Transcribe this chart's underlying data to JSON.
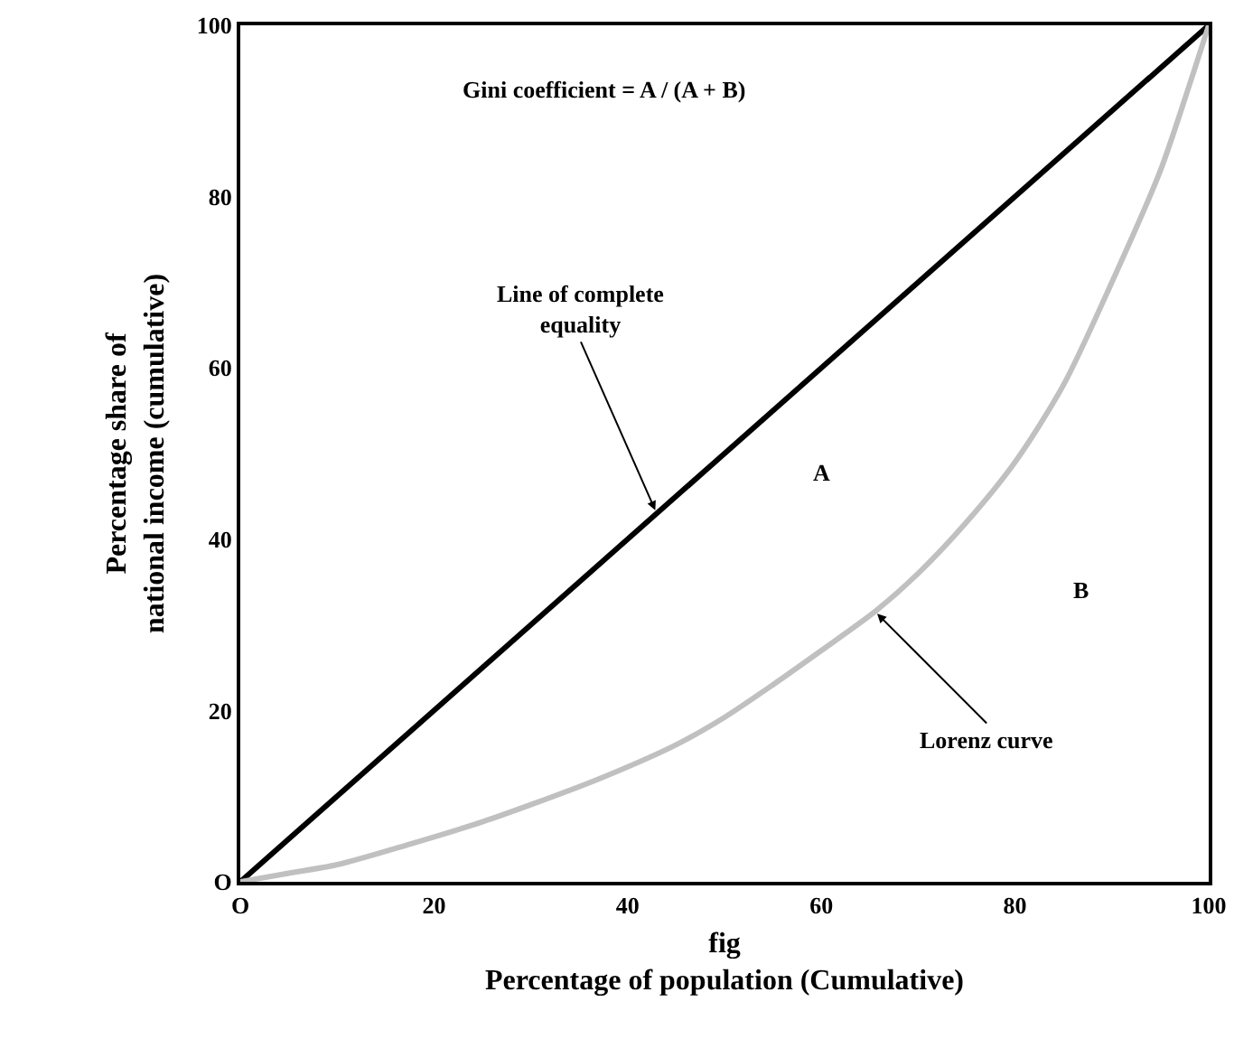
{
  "chart_data": {
    "type": "line",
    "xlabel": "fig\nPercentage of population (Cumulative)",
    "ylabel": "Percentage share of\nnational income (cumulative)",
    "xlim": [
      0,
      100
    ],
    "ylim": [
      0,
      100
    ],
    "xticks": [
      {
        "value": 0,
        "label": "O"
      },
      20,
      40,
      60,
      80,
      100
    ],
    "yticks": [
      {
        "value": 0,
        "label": "O"
      },
      20,
      40,
      60,
      80,
      100
    ],
    "marker": "none",
    "line_style": "solid",
    "series": [
      {
        "color": "#000000",
        "x": [
          0,
          100
        ],
        "values": [
          0,
          100
        ]
      },
      {
        "color": "#c0c0c0",
        "x": [
          0,
          5,
          10,
          17.5,
          25,
          30,
          37,
          45,
          50,
          55,
          60,
          65.6,
          70,
          75,
          80,
          85,
          90,
          95,
          98,
          100
        ],
        "values": [
          0,
          1,
          2,
          4.4,
          7,
          9,
          12,
          16,
          19.2,
          23,
          27,
          31.6,
          36,
          42,
          49,
          58,
          70,
          83,
          93,
          100
        ]
      }
    ],
    "annotations": [
      "Gini coefficient = A / (A + B)",
      {
        "text": "Line of complete equality",
        "x": 43,
        "y": 43
      },
      {
        "text": "Lorenz curve",
        "x": 65.5,
        "y": 31.6
      },
      "A",
      "B"
    ]
  }
}
